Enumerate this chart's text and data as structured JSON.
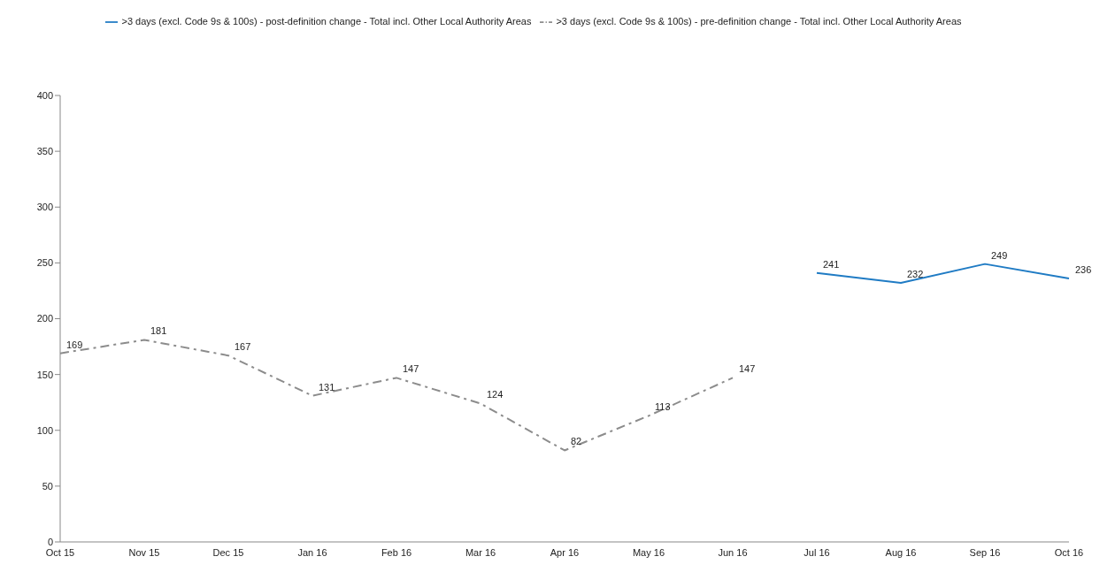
{
  "chart_data": {
    "type": "line",
    "categories": [
      "Oct 15",
      "Nov 15",
      "Dec 15",
      "Jan 16",
      "Feb 16",
      "Mar 16",
      "Apr 16",
      "May 16",
      "Jun 16",
      "Jul 16",
      "Aug 16",
      "Sep 16",
      "Oct 16"
    ],
    "series": [
      {
        "name": ">3 days (excl. Code 9s & 100s) - post-definition change - Total incl. Other Local Authority Areas",
        "color": "#1f7bc4",
        "line_style": "solid",
        "values": [
          null,
          null,
          null,
          null,
          null,
          null,
          null,
          null,
          null,
          241,
          232,
          249,
          236
        ]
      },
      {
        "name": ">3 days (excl. Code 9s & 100s) - pre-definition change - Total incl. Other Local Authority Areas",
        "color": "#8c8c8c",
        "line_style": "dashed",
        "values": [
          169,
          181,
          167,
          131,
          147,
          124,
          82,
          113,
          147,
          null,
          null,
          null,
          null
        ]
      }
    ],
    "ylim": [
      0,
      400
    ],
    "yticks": [
      0,
      50,
      100,
      150,
      200,
      250,
      300,
      350,
      400
    ],
    "legend": "top",
    "marker": "none",
    "data_labels": true
  }
}
